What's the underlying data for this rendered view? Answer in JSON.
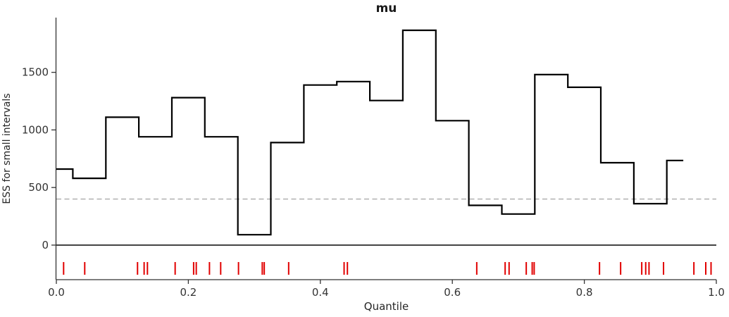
{
  "title": "mu",
  "xlabel": "Quantile",
  "ylabel": "ESS for small intervals",
  "chart_data": {
    "type": "line",
    "drawstyle": "steps-mid",
    "description": "ESS for small intervals (local ESS) per quantile interval, with rug of low-ESS draws",
    "x": [
      0.0,
      0.05,
      0.1,
      0.15,
      0.2,
      0.25,
      0.3,
      0.35,
      0.4,
      0.45,
      0.5,
      0.55,
      0.6,
      0.65,
      0.7,
      0.75,
      0.8,
      0.85,
      0.9,
      0.95
    ],
    "values": [
      660,
      580,
      1110,
      940,
      1280,
      940,
      90,
      890,
      1390,
      1420,
      1255,
      1865,
      1080,
      345,
      270,
      1480,
      1370,
      715,
      360,
      735
    ],
    "min_ess_reference": 400,
    "zero_line_value": 0,
    "xlim": [
      0,
      1
    ],
    "ylim": [
      -300,
      1975
    ],
    "grid": false,
    "legend": "none",
    "xtick_values": [
      0.0,
      0.2,
      0.4,
      0.6,
      0.8,
      1.0
    ],
    "xtick_labels": [
      "0.0",
      "0.2",
      "0.4",
      "0.6",
      "0.8",
      "1.0"
    ],
    "ytick_values": [
      0,
      500,
      1000,
      1500
    ],
    "ytick_labels": [
      "0",
      "500",
      "1000",
      "1500"
    ],
    "rug_quantiles": [
      0.011,
      0.043,
      0.123,
      0.133,
      0.138,
      0.18,
      0.208,
      0.212,
      0.232,
      0.249,
      0.276,
      0.312,
      0.315,
      0.352,
      0.436,
      0.441,
      0.637,
      0.68,
      0.686,
      0.712,
      0.721,
      0.724,
      0.823,
      0.855,
      0.887,
      0.893,
      0.898,
      0.92,
      0.966,
      0.984,
      0.992
    ],
    "colors": {
      "step_line": "#000000",
      "min_ess_line": "#aaaaaa",
      "zero_line": "#4a4a4a",
      "rug": "#e10000",
      "axis": "#333333",
      "tick_text": "#333333"
    }
  }
}
